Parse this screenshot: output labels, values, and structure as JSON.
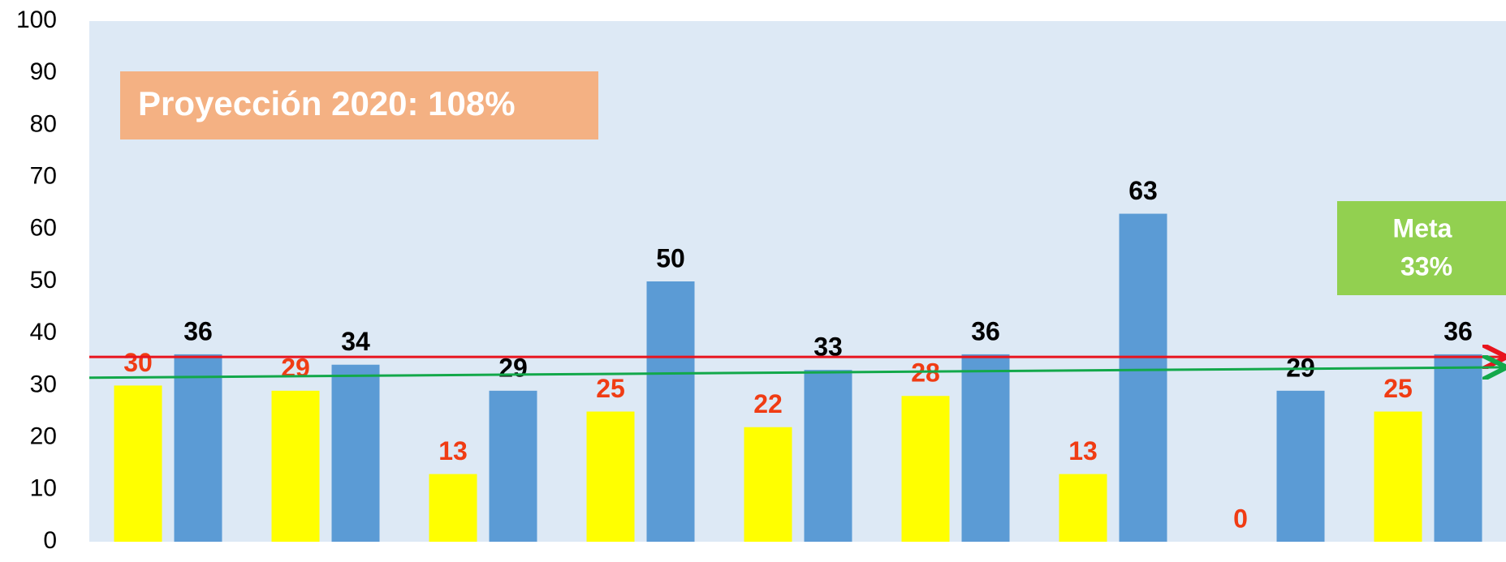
{
  "chart_data": {
    "type": "bar",
    "annotations": [
      "Proyección 2020:  108%",
      "Meta",
      "33%"
    ],
    "series": [
      {
        "color": "#ffff00",
        "label_color": "#f03c14",
        "values": [
          30,
          29,
          13,
          25,
          22,
          28,
          13,
          0,
          25
        ]
      },
      {
        "color": "#5b9bd5",
        "label_color": "#000000",
        "values": [
          36,
          34,
          29,
          50,
          33,
          36,
          63,
          29,
          36
        ]
      }
    ],
    "reference_lines": [
      {
        "color": "#e8141e",
        "values": [
          35.5,
          35.5
        ]
      },
      {
        "color": "#12a84a",
        "values": [
          31.5,
          33.5
        ]
      }
    ],
    "ylim": [
      0,
      100
    ],
    "yticks": [
      0,
      10,
      20,
      30,
      40,
      50,
      60,
      70,
      80,
      90,
      100
    ],
    "background": "#dde9f5"
  }
}
